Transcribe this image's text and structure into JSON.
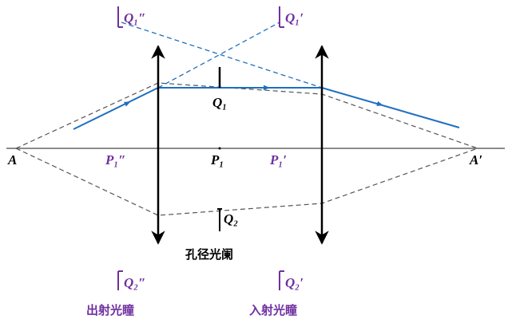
{
  "labels": {
    "q1_double_prime": "Q₁″",
    "q1_prime": "Q₁′",
    "q1": "Q₁",
    "a": "A",
    "a_prime": "A′",
    "p1_double_prime": "P₁″",
    "p1": "P₁",
    "p1_prime": "P₁′",
    "q2": "Q₂",
    "aperture_stop": "孔径光阑",
    "q2_double_prime": "Q₂″",
    "q2_prime": "Q₂′",
    "exit_pupil": "出射光瞳",
    "entrance_pupil": "入射光瞳"
  }
}
